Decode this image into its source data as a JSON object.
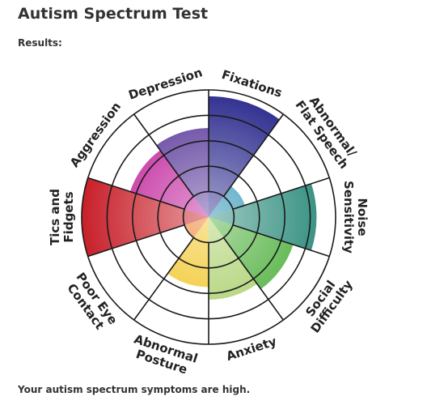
{
  "header": {
    "title": "Autism Spectrum Test",
    "subtitle": "Results:"
  },
  "footer": {
    "text": "Your autism spectrum symptoms are high."
  },
  "chart_data": {
    "type": "polar_area",
    "categories": [
      [
        "Fixations"
      ],
      [
        "Abnormal/",
        "Flat Speech"
      ],
      [
        "Noise",
        "Sensitivity"
      ],
      [
        "Social",
        "Difficulty"
      ],
      [
        "Anxiety"
      ],
      [
        "Abnormal",
        "Posture"
      ],
      [
        "Poor Eye",
        "Contact"
      ],
      [
        "Tics and",
        "Fidgets"
      ],
      [
        "Aggression"
      ],
      [
        "Depression"
      ]
    ],
    "values": [
      9.5,
      3,
      8.5,
      7,
      6.5,
      5.5,
      2,
      10,
      6.5,
      7
    ],
    "colors": [
      "#2e2d8f",
      "#1a8ab0",
      "#2a8a7a",
      "#4caf3a",
      "#a9cf6a",
      "#f0c420",
      "#e87820",
      "#c8202a",
      "#c0209a",
      "#5a3a9a"
    ],
    "rlim": [
      0,
      10
    ],
    "rticks": [
      2,
      4,
      6,
      8,
      10
    ]
  }
}
